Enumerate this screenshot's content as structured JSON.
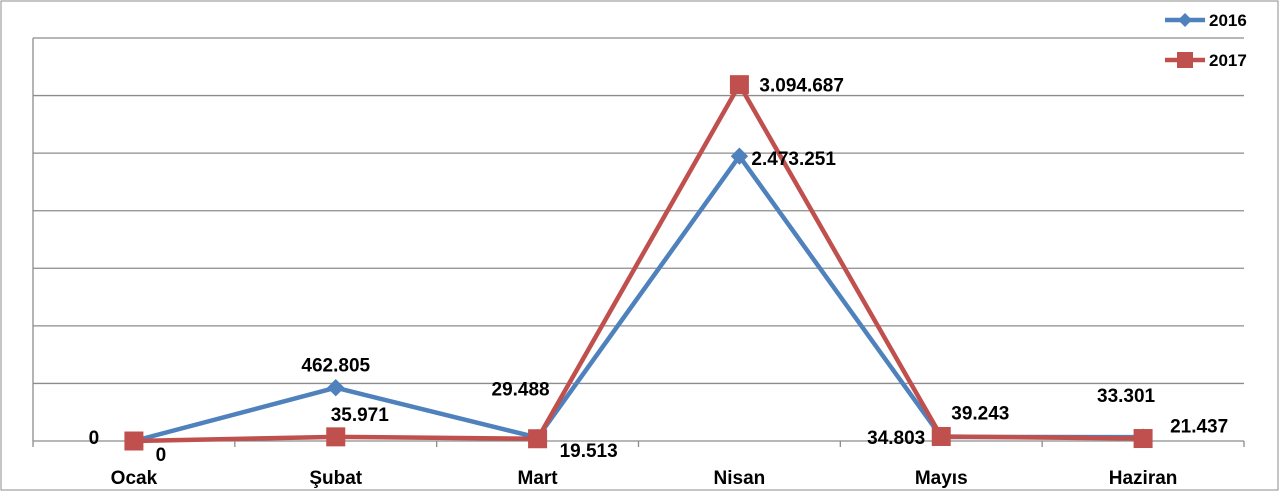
{
  "chart_data": {
    "type": "line",
    "title": "",
    "xlabel": "",
    "ylabel": "",
    "categories": [
      "Ocak",
      "Şubat",
      "Mart",
      "Nisan",
      "Mayıs",
      "Haziran"
    ],
    "ylim": [
      0,
      3500000
    ],
    "y_gridline_step": 500000,
    "y_tick_labels_shown": false,
    "grid": true,
    "legend_position": "top-right",
    "series": [
      {
        "name": "2016",
        "color": "#4f81bd",
        "marker": "diamond",
        "values": [
          0,
          462805,
          29488,
          2473251,
          34803,
          33301
        ],
        "labels": [
          "0",
          "462.805",
          "29.488",
          "2.473.251",
          "34.803",
          "33.301"
        ]
      },
      {
        "name": "2017",
        "color": "#c0504d",
        "marker": "square",
        "values": [
          0,
          35971,
          19513,
          3094687,
          39243,
          21437
        ],
        "labels": [
          "0",
          "35.971",
          "19.513",
          "3.094.687",
          "39.243",
          "21.437"
        ]
      }
    ]
  }
}
